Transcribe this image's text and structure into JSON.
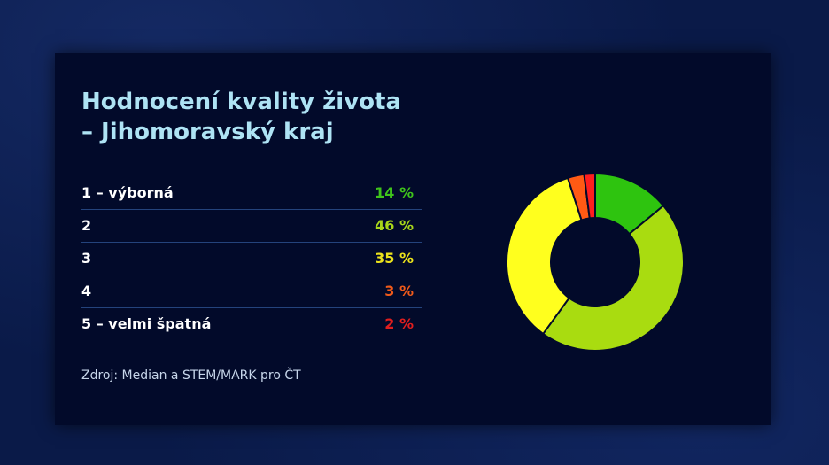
{
  "title": {
    "line1": "Hodnocení kvality života",
    "line2": "– Jihomoravský kraj"
  },
  "rows": [
    {
      "label": "1 – výborná",
      "value": "14 %",
      "color": "#3fc41b"
    },
    {
      "label": "2",
      "value": "46 %",
      "color": "#a8d61a"
    },
    {
      "label": "3",
      "value": "35 %",
      "color": "#ebe21c"
    },
    {
      "label": "4",
      "value": "3 %",
      "color": "#f05a1a"
    },
    {
      "label": "5 – velmi špatná",
      "value": "2 %",
      "color": "#e01e1e"
    }
  ],
  "source": "Zdroj: Median a STEM/MARK pro ČT",
  "chart_data": {
    "type": "pie",
    "categories": [
      "1 – výborná",
      "2",
      "3",
      "4",
      "5 – velmi špatná"
    ],
    "values": [
      14,
      46,
      35,
      3,
      2
    ],
    "colors": [
      "#2ec40f",
      "#a9dc10",
      "#ffff1e",
      "#ff5a14",
      "#ff1e1e"
    ],
    "donut": true,
    "title": "Hodnocení kvality života – Jihomoravský kraj"
  }
}
